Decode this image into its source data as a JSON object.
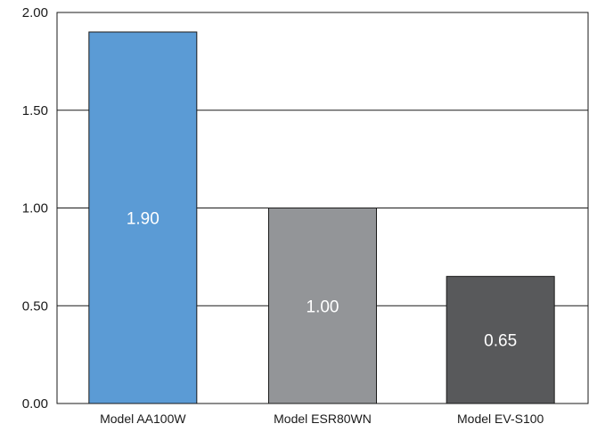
{
  "chart_data": {
    "type": "bar",
    "title": "",
    "xlabel": "",
    "ylabel": "",
    "categories": [
      "Model AA100W",
      "Model ESR80WN",
      "Model EV-S100"
    ],
    "values": [
      1.9,
      1.0,
      0.65
    ],
    "data_labels": [
      "1.90",
      "1.00",
      "0.65"
    ],
    "bar_colors": [
      "#5b9bd5",
      "#939598",
      "#58595b"
    ],
    "ylim": [
      0,
      2
    ],
    "yticks": [
      0,
      0.5,
      1,
      1.5,
      2
    ],
    "ytick_labels": [
      "0.00",
      "0.50",
      "1.00",
      "1.50",
      "2.00"
    ],
    "grid": true,
    "legend": "none"
  }
}
